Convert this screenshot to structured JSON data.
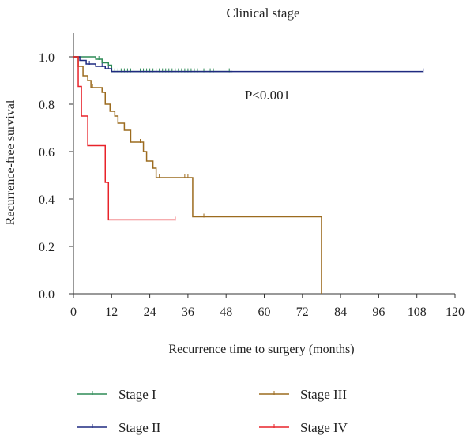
{
  "chart_data": {
    "type": "line",
    "title": "Clinical stage",
    "xlabel": "Recurrence time to surgery (months)",
    "ylabel": "Recurrence-free survival",
    "xlim": [
      0,
      120
    ],
    "ylim": [
      0,
      1.1
    ],
    "xticks": [
      0,
      12,
      24,
      36,
      48,
      60,
      72,
      84,
      96,
      108,
      120
    ],
    "xtick_labels": [
      "0",
      "12",
      "24",
      "36",
      "48",
      "60",
      "72",
      "84",
      "96",
      "108",
      "120"
    ],
    "yticks": [
      0,
      0.2,
      0.4,
      0.6,
      0.8,
      1.0
    ],
    "ytick_labels": [
      "0.0",
      "0.2",
      "0.4",
      "0.6",
      "0.8",
      "1.0"
    ],
    "grid": false,
    "legend_position": "bottom",
    "annotations": [
      {
        "text": "P<0.001",
        "x": 61,
        "y": 0.84
      }
    ],
    "series": [
      {
        "name": "Stage I",
        "color": "#2e8b57",
        "steps": [
          [
            0,
            1.0
          ],
          [
            7,
            0.99
          ],
          [
            9,
            0.975
          ],
          [
            11,
            0.965
          ],
          [
            12,
            0.938
          ],
          [
            50,
            0.938
          ]
        ],
        "censored": [
          8,
          13,
          14,
          15,
          16,
          17,
          18,
          19,
          20,
          21,
          22,
          23,
          24,
          25,
          26,
          27,
          28,
          29,
          30,
          31,
          32,
          33,
          34,
          35,
          36,
          37,
          38,
          39,
          41,
          43,
          44,
          49
        ]
      },
      {
        "name": "Stage II",
        "color": "#1f2a80",
        "steps": [
          [
            0,
            1.0
          ],
          [
            2,
            0.985
          ],
          [
            4,
            0.97
          ],
          [
            7,
            0.96
          ],
          [
            10,
            0.95
          ],
          [
            12,
            0.938
          ],
          [
            110,
            0.938
          ]
        ],
        "censored": [
          5,
          9,
          11,
          110
        ]
      },
      {
        "name": "Stage III",
        "color": "#9c6b1f",
        "steps": [
          [
            0,
            1.0
          ],
          [
            1.5,
            0.96
          ],
          [
            3,
            0.92
          ],
          [
            4.5,
            0.9
          ],
          [
            5.5,
            0.87
          ],
          [
            9,
            0.85
          ],
          [
            10,
            0.8
          ],
          [
            11.5,
            0.77
          ],
          [
            13,
            0.75
          ],
          [
            14,
            0.72
          ],
          [
            16,
            0.69
          ],
          [
            18,
            0.64
          ],
          [
            22,
            0.6
          ],
          [
            23,
            0.56
          ],
          [
            25,
            0.53
          ],
          [
            26,
            0.49
          ],
          [
            37.5,
            0.325
          ],
          [
            78,
            0.325
          ],
          [
            78,
            0.0
          ]
        ],
        "censored": [
          6,
          21,
          27,
          35,
          36,
          41
        ]
      },
      {
        "name": "Stage IV",
        "color": "#e8232a",
        "steps": [
          [
            0,
            1.0
          ],
          [
            1.5,
            0.875
          ],
          [
            2.5,
            0.75
          ],
          [
            4.5,
            0.625
          ],
          [
            10,
            0.47
          ],
          [
            11,
            0.312
          ],
          [
            32,
            0.312
          ]
        ],
        "censored": [
          20,
          32
        ]
      }
    ]
  }
}
